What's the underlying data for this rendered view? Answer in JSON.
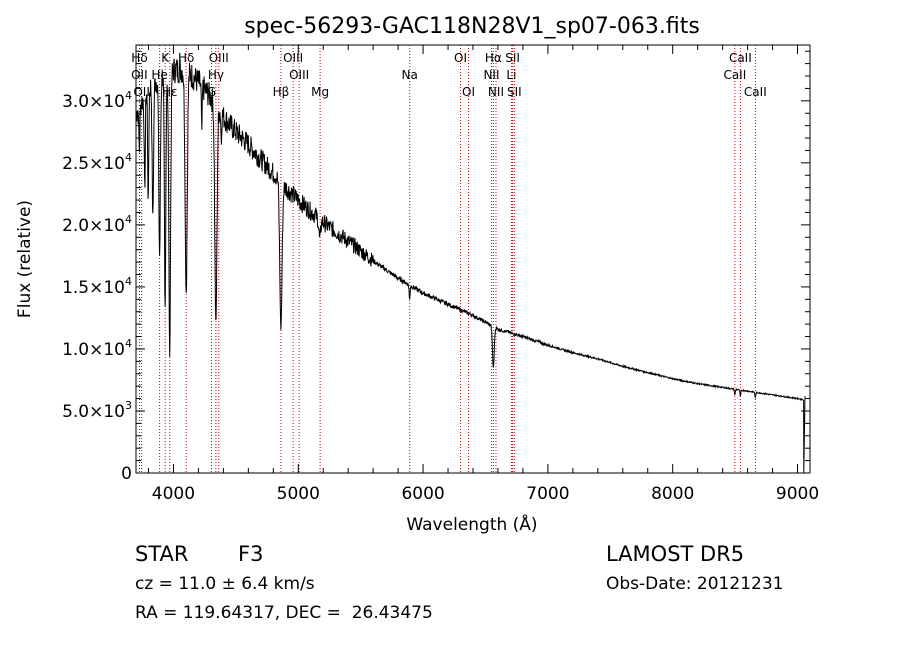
{
  "chart_data": {
    "type": "line",
    "title": "spec-56293-GAC118N28V1_sp07-063.fits",
    "xlabel": "Wavelength (Å)",
    "ylabel": "Flux (relative)",
    "xlim": [
      3700,
      9100
    ],
    "ylim": [
      0,
      34500
    ],
    "xticks": [
      {
        "value": 4000,
        "label": "4000"
      },
      {
        "value": 5000,
        "label": "5000"
      },
      {
        "value": 6000,
        "label": "6000"
      },
      {
        "value": 7000,
        "label": "7000"
      },
      {
        "value": 8000,
        "label": "8000"
      },
      {
        "value": 9000,
        "label": "9000"
      }
    ],
    "yticks": [
      {
        "value": 0,
        "label": "0",
        "exp": ""
      },
      {
        "value": 5000,
        "label": "5.0×10",
        "exp": "3"
      },
      {
        "value": 10000,
        "label": "1.0×10",
        "exp": "4"
      },
      {
        "value": 15000,
        "label": "1.5×10",
        "exp": "4"
      },
      {
        "value": 20000,
        "label": "2.0×10",
        "exp": "4"
      },
      {
        "value": 25000,
        "label": "2.5×10",
        "exp": "4"
      },
      {
        "value": 30000,
        "label": "3.0×10",
        "exp": "4"
      }
    ],
    "continuum": [
      [
        3700,
        29000
      ],
      [
        3800,
        31000
      ],
      [
        3900,
        32000
      ],
      [
        4000,
        32500
      ],
      [
        4100,
        32500
      ],
      [
        4200,
        31500
      ],
      [
        4300,
        30300
      ],
      [
        4400,
        28700
      ],
      [
        4500,
        27500
      ],
      [
        4600,
        26500
      ],
      [
        4700,
        25300
      ],
      [
        4800,
        24200
      ],
      [
        4900,
        23000
      ],
      [
        5000,
        22000
      ],
      [
        5200,
        20200
      ],
      [
        5400,
        18700
      ],
      [
        5600,
        17100
      ],
      [
        5800,
        15700
      ],
      [
        6000,
        14500
      ],
      [
        6200,
        13600
      ],
      [
        6400,
        12700
      ],
      [
        6600,
        11600
      ],
      [
        6800,
        11000
      ],
      [
        7000,
        10300
      ],
      [
        7200,
        9700
      ],
      [
        7400,
        9200
      ],
      [
        7600,
        8600
      ],
      [
        7800,
        8100
      ],
      [
        8000,
        7600
      ],
      [
        8200,
        7200
      ],
      [
        8400,
        6900
      ],
      [
        8600,
        6600
      ],
      [
        8800,
        6300
      ],
      [
        9000,
        6000
      ],
      [
        9050,
        5900
      ]
    ],
    "absorption_features": [
      {
        "center": 3727,
        "width": 6,
        "depth": 0.12
      },
      {
        "center": 3770,
        "width": 6,
        "depth": 0.25
      },
      {
        "center": 3798,
        "width": 6,
        "depth": 0.3
      },
      {
        "center": 3835,
        "width": 8,
        "depth": 0.35
      },
      {
        "center": 3889,
        "width": 9,
        "depth": 0.45
      },
      {
        "center": 3933,
        "width": 8,
        "depth": 0.6
      },
      {
        "center": 3970,
        "width": 10,
        "depth": 0.7
      },
      {
        "center": 4102,
        "width": 12,
        "depth": 0.55
      },
      {
        "center": 4227,
        "width": 5,
        "depth": 0.12
      },
      {
        "center": 4340,
        "width": 12,
        "depth": 0.6
      },
      {
        "center": 4383,
        "width": 4,
        "depth": 0.08
      },
      {
        "center": 4861,
        "width": 13,
        "depth": 0.5
      },
      {
        "center": 5172,
        "width": 10,
        "depth": 0.08
      },
      {
        "center": 5892,
        "width": 5,
        "depth": 0.08
      },
      {
        "center": 6563,
        "width": 10,
        "depth": 0.28
      },
      {
        "center": 8498,
        "width": 5,
        "depth": 0.07
      },
      {
        "center": 8542,
        "width": 5,
        "depth": 0.08
      },
      {
        "center": 8662,
        "width": 5,
        "depth": 0.07
      }
    ],
    "line_markers": [
      {
        "label": "Hδ",
        "wavelength": 3728,
        "row": 0
      },
      {
        "label": "OII",
        "wavelength": 3727,
        "row": 1
      },
      {
        "label": "OII",
        "wavelength": 3745,
        "row": 2
      },
      {
        "label": "K",
        "wavelength": 3934,
        "row": 0
      },
      {
        "label": "He",
        "wavelength": 3889,
        "row": 1
      },
      {
        "label": "Hε",
        "wavelength": 3970,
        "row": 2
      },
      {
        "label": "Hδ",
        "wavelength": 4102,
        "row": 0
      },
      {
        "label": "OIII",
        "wavelength": 4363,
        "row": 0
      },
      {
        "label": "Hγ",
        "wavelength": 4340,
        "row": 1
      },
      {
        "label": "G",
        "wavelength": 4305,
        "row": 2
      },
      {
        "label": "OIII",
        "wavelength": 4959,
        "row": 0
      },
      {
        "label": "OIII",
        "wavelength": 5007,
        "row": 1
      },
      {
        "label": "Hβ",
        "wavelength": 4861,
        "row": 2
      },
      {
        "label": "Mg",
        "wavelength": 5175,
        "row": 2
      },
      {
        "label": "Na",
        "wavelength": 5893,
        "row": 1
      },
      {
        "label": "OI",
        "wavelength": 6300,
        "row": 0
      },
      {
        "label": "OI",
        "wavelength": 6364,
        "row": 2
      },
      {
        "label": "Hα",
        "wavelength": 6563,
        "row": 0
      },
      {
        "label": "SII",
        "wavelength": 6717,
        "row": 0
      },
      {
        "label": "NII",
        "wavelength": 6548,
        "row": 1
      },
      {
        "label": "Li",
        "wavelength": 6708,
        "row": 1
      },
      {
        "label": "NII",
        "wavelength": 6584,
        "row": 2
      },
      {
        "label": "SII",
        "wavelength": 6731,
        "row": 2
      },
      {
        "label": "CaII",
        "wavelength": 8542,
        "row": 0
      },
      {
        "label": "CaII",
        "wavelength": 8498,
        "row": 1
      },
      {
        "label": "CaII",
        "wavelength": 8662,
        "row": 2
      }
    ]
  },
  "info": {
    "class": "STAR",
    "subclass": "F3",
    "survey": "LAMOST DR5",
    "cz": "cz = 11.0 ± 6.4 km/s",
    "obs_date": "Obs-Date: 20121231",
    "radec": "RA = 119.64317, DEC =  26.43475"
  }
}
